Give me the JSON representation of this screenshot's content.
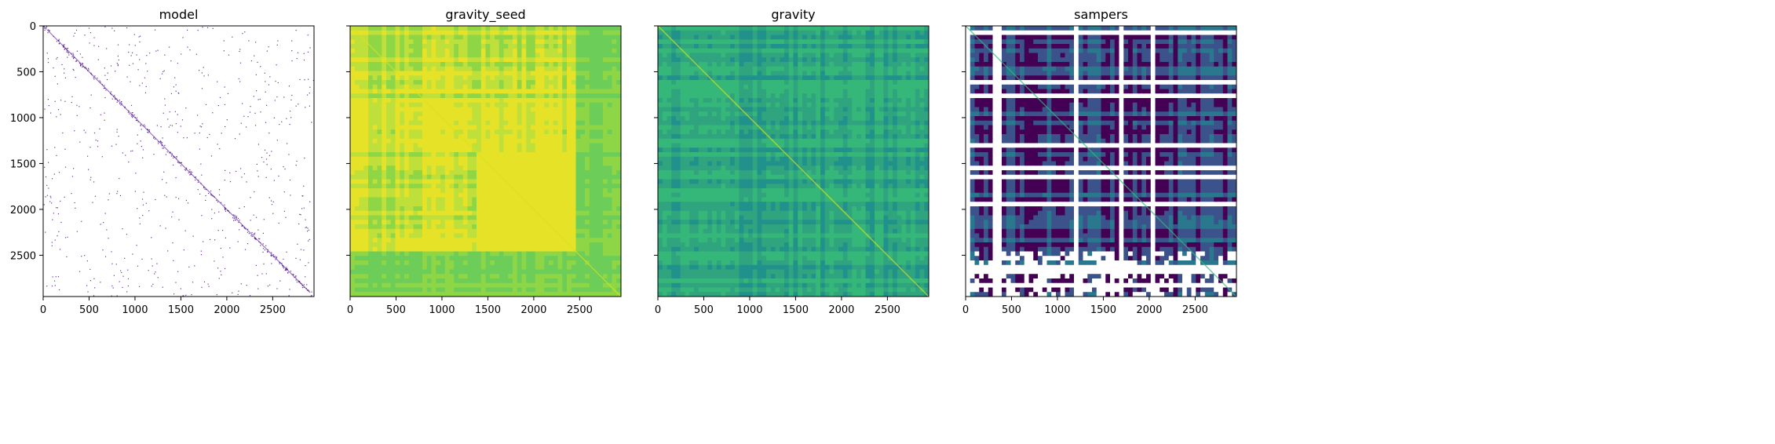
{
  "chart_data": [
    {
      "type": "heatmap",
      "title": "model",
      "xlim": [
        0,
        2950
      ],
      "ylim": [
        2950,
        0
      ],
      "xticks": [
        0,
        500,
        1000,
        1500,
        2000,
        2500
      ],
      "yticks": [
        0,
        500,
        1000,
        1500,
        2000,
        2500
      ],
      "colormap": "Purples (sparse, white background)",
      "show_ytick_labels": true
    },
    {
      "type": "heatmap",
      "title": "gravity_seed",
      "xlim": [
        0,
        2950
      ],
      "ylim": [
        2950,
        0
      ],
      "xticks": [
        0,
        500,
        1000,
        1500,
        2000,
        2500
      ],
      "yticks": [
        0,
        500,
        1000,
        1500,
        2000,
        2500
      ],
      "colormap": "viridis (high values)",
      "show_ytick_labels": false
    },
    {
      "type": "heatmap",
      "title": "gravity",
      "xlim": [
        0,
        2950
      ],
      "ylim": [
        2950,
        0
      ],
      "xticks": [
        0,
        500,
        1000,
        1500,
        2000,
        2500
      ],
      "yticks": [
        0,
        500,
        1000,
        1500,
        2000,
        2500
      ],
      "colormap": "viridis (mid values)",
      "show_ytick_labels": false
    },
    {
      "type": "heatmap",
      "title": "sampers",
      "xlim": [
        0,
        2950
      ],
      "ylim": [
        2950,
        0
      ],
      "xticks": [
        0,
        500,
        1000,
        1500,
        2000,
        2500
      ],
      "yticks": [
        0,
        500,
        1000,
        1500,
        2000,
        2500
      ],
      "colormap": "viridis (low values, with white gaps)",
      "show_ytick_labels": false
    }
  ],
  "colors": {
    "model_points": "#3f007d",
    "seed_base": "#e6e228",
    "seed_low": "#8ed645",
    "gravity_base": "#35b779",
    "gravity_low": "#21918c",
    "sampers_base": "#3b528b",
    "sampers_low": "#440154",
    "sampers_mid": "#2a788e",
    "gap": "#ffffff"
  }
}
